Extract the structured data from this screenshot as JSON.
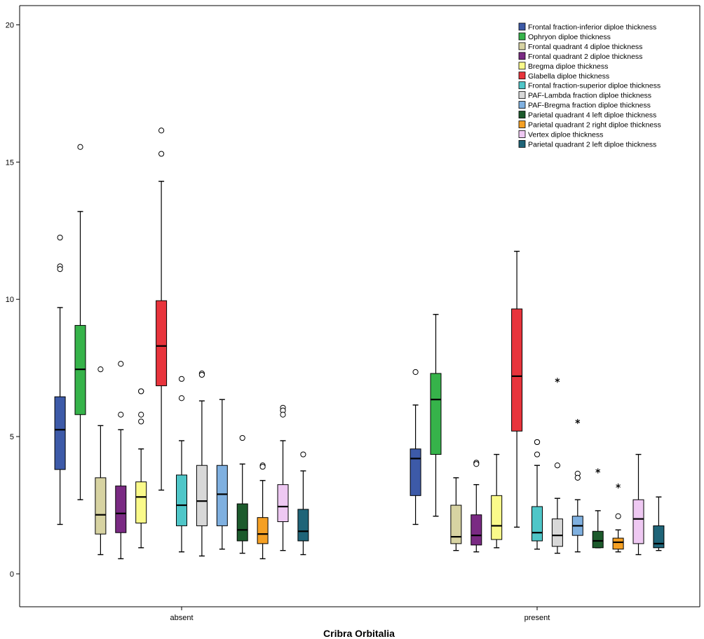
{
  "chart_data": {
    "type": "boxplot",
    "xlabel": "Cribra Orbitalia",
    "ylabel": "",
    "categories": [
      "absent",
      "present"
    ],
    "ylim": [
      -1.2,
      20.7
    ],
    "yticks": [
      0,
      5,
      10,
      15,
      20
    ],
    "grid": false,
    "legend": "top-right",
    "series": [
      {
        "name": "Frontal fraction-inferior diploe thickness",
        "color": "#3d5aa8",
        "boxes": [
          {
            "min": 1.8,
            "q1": 3.8,
            "median": 5.25,
            "q3": 6.45,
            "max": 9.7,
            "outliers": [
              12.25,
              11.2,
              11.1
            ],
            "extremes": []
          },
          {
            "min": 1.8,
            "q1": 2.85,
            "median": 4.2,
            "q3": 4.55,
            "max": 6.15,
            "outliers": [
              7.35
            ],
            "extremes": []
          }
        ]
      },
      {
        "name": "Ophryon diploe thickness",
        "color": "#36b34a",
        "boxes": [
          {
            "min": 2.7,
            "q1": 5.8,
            "median": 7.45,
            "q3": 9.05,
            "max": 13.2,
            "outliers": [
              15.55
            ],
            "extremes": []
          },
          {
            "min": 2.1,
            "q1": 4.35,
            "median": 6.35,
            "q3": 7.3,
            "max": 9.45,
            "outliers": [],
            "extremes": []
          }
        ]
      },
      {
        "name": "Frontal quadrant 4 diploe thickness",
        "color": "#d7d3a2",
        "boxes": [
          {
            "min": 0.7,
            "q1": 1.45,
            "median": 2.15,
            "q3": 3.5,
            "max": 5.4,
            "outliers": [
              7.45
            ],
            "extremes": []
          },
          {
            "min": 0.85,
            "q1": 1.1,
            "median": 1.35,
            "q3": 2.5,
            "max": 3.5,
            "outliers": [],
            "extremes": []
          }
        ]
      },
      {
        "name": "Frontal quadrant 2 diploe thickness",
        "color": "#7a2a83",
        "boxes": [
          {
            "min": 0.55,
            "q1": 1.5,
            "median": 2.2,
            "q3": 3.2,
            "max": 5.25,
            "outliers": [
              7.65,
              5.8
            ],
            "extremes": []
          },
          {
            "min": 0.8,
            "q1": 1.05,
            "median": 1.4,
            "q3": 2.15,
            "max": 3.25,
            "outliers": [
              4.05,
              4.0
            ],
            "extremes": []
          }
        ]
      },
      {
        "name": "Bregma diploe thickness",
        "color": "#fafa8a",
        "boxes": [
          {
            "min": 0.95,
            "q1": 1.85,
            "median": 2.8,
            "q3": 3.35,
            "max": 4.55,
            "outliers": [
              6.65,
              6.65,
              5.8,
              5.55
            ],
            "extremes": []
          },
          {
            "min": 0.95,
            "q1": 1.25,
            "median": 1.75,
            "q3": 2.85,
            "max": 4.35,
            "outliers": [],
            "extremes": []
          }
        ]
      },
      {
        "name": "Glabella diploe thickness",
        "color": "#e8343c",
        "boxes": [
          {
            "min": 3.05,
            "q1": 6.85,
            "median": 8.3,
            "q3": 9.95,
            "max": 14.3,
            "outliers": [
              16.15,
              15.3
            ],
            "extremes": []
          },
          {
            "min": 1.7,
            "q1": 5.2,
            "median": 7.2,
            "q3": 9.65,
            "max": 11.75,
            "outliers": [],
            "extremes": []
          }
        ]
      },
      {
        "name": "Frontal fraction-superior diploe thickness",
        "color": "#4fc6c8",
        "boxes": [
          {
            "min": 0.8,
            "q1": 1.75,
            "median": 2.5,
            "q3": 3.6,
            "max": 4.85,
            "outliers": [
              7.1,
              6.4
            ],
            "extremes": []
          },
          {
            "min": 0.9,
            "q1": 1.2,
            "median": 1.5,
            "q3": 2.45,
            "max": 3.95,
            "outliers": [
              4.8,
              4.8,
              4.35
            ],
            "extremes": []
          }
        ]
      },
      {
        "name": "PAF-Lambda fraction diploe thickness",
        "color": "#d8d8d8",
        "boxes": [
          {
            "min": 0.65,
            "q1": 1.75,
            "median": 2.65,
            "q3": 3.95,
            "max": 6.3,
            "outliers": [
              7.3,
              7.25
            ],
            "extremes": []
          },
          {
            "min": 0.75,
            "q1": 1.0,
            "median": 1.4,
            "q3": 2.0,
            "max": 2.75,
            "outliers": [
              3.95
            ],
            "extremes": [
              7.05
            ]
          }
        ]
      },
      {
        "name": "PAF-Bregma fraction diploe thickness",
        "color": "#7fb0e0",
        "boxes": [
          {
            "min": 0.9,
            "q1": 1.75,
            "median": 2.9,
            "q3": 3.95,
            "max": 6.35,
            "outliers": [],
            "extremes": []
          },
          {
            "min": 0.8,
            "q1": 1.4,
            "median": 1.75,
            "q3": 2.1,
            "max": 2.7,
            "outliers": [
              3.65,
              3.5
            ],
            "extremes": [
              5.55
            ]
          }
        ]
      },
      {
        "name": "Parietal quadrant 4 left diploe thickness",
        "color": "#1c5a2c",
        "boxes": [
          {
            "min": 0.75,
            "q1": 1.2,
            "median": 1.6,
            "q3": 2.55,
            "max": 4.0,
            "outliers": [
              4.95
            ],
            "extremes": []
          },
          {
            "min": 0.95,
            "q1": 0.95,
            "median": 1.2,
            "q3": 1.55,
            "max": 2.3,
            "outliers": [],
            "extremes": [
              3.75
            ]
          }
        ]
      },
      {
        "name": "Parietal quadrant 2 right diploe thickness",
        "color": "#f5a024",
        "boxes": [
          {
            "min": 0.55,
            "q1": 1.1,
            "median": 1.45,
            "q3": 2.05,
            "max": 3.4,
            "outliers": [
              3.95,
              3.9
            ],
            "extremes": []
          },
          {
            "min": 0.8,
            "q1": 0.9,
            "median": 1.15,
            "q3": 1.3,
            "max": 1.6,
            "outliers": [
              2.1
            ],
            "extremes": [
              3.2
            ]
          }
        ]
      },
      {
        "name": "Vertex diploe thickness",
        "color": "#eec8f2",
        "boxes": [
          {
            "min": 0.85,
            "q1": 1.9,
            "median": 2.45,
            "q3": 3.25,
            "max": 4.85,
            "outliers": [
              6.05,
              5.95,
              5.8
            ],
            "extremes": []
          },
          {
            "min": 0.7,
            "q1": 1.1,
            "median": 2.0,
            "q3": 2.7,
            "max": 4.35,
            "outliers": [],
            "extremes": []
          }
        ]
      },
      {
        "name": "Parietal quadrant 2 left diploe thickness",
        "color": "#1f6478",
        "boxes": [
          {
            "min": 0.7,
            "q1": 1.2,
            "median": 1.55,
            "q3": 2.35,
            "max": 3.75,
            "outliers": [
              4.35
            ],
            "extremes": []
          },
          {
            "min": 0.85,
            "q1": 0.95,
            "median": 1.1,
            "q3": 1.75,
            "max": 2.8,
            "outliers": [],
            "extremes": []
          }
        ]
      }
    ]
  }
}
